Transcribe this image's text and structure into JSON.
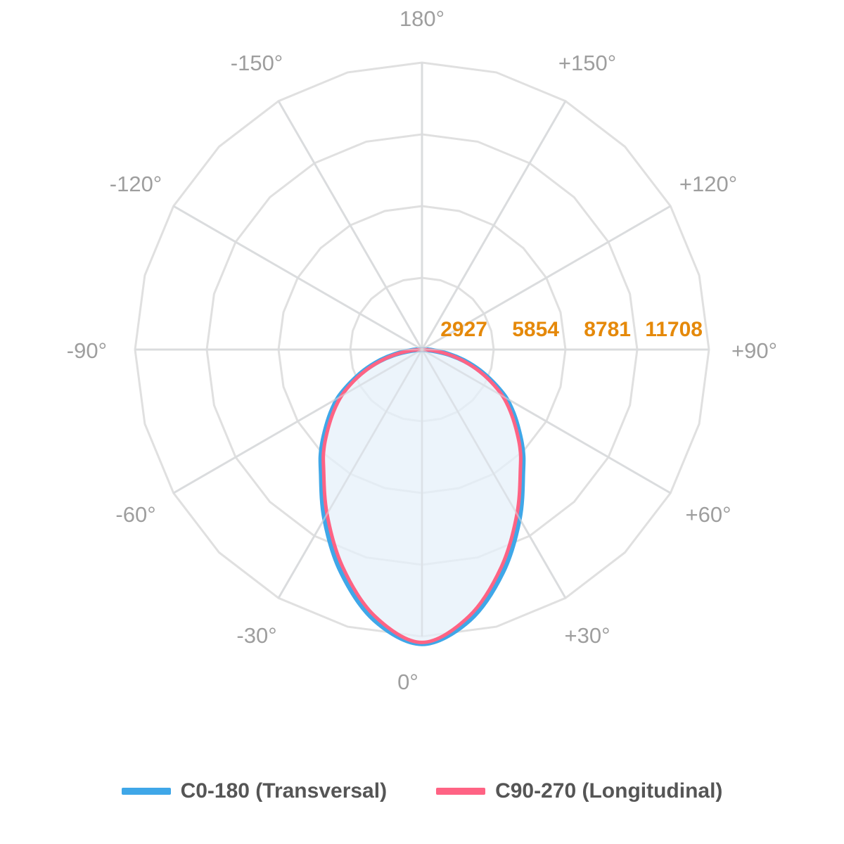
{
  "chart_data": {
    "type": "polar",
    "angle_labels": [
      {
        "deg": 0,
        "text": "0°"
      },
      {
        "deg": 30,
        "text": "+30°"
      },
      {
        "deg": 60,
        "text": "+60°"
      },
      {
        "deg": 90,
        "text": "+90°"
      },
      {
        "deg": 120,
        "text": "+120°"
      },
      {
        "deg": 150,
        "text": "+150°"
      },
      {
        "deg": 180,
        "text": "180°"
      },
      {
        "deg": -150,
        "text": "-150°"
      },
      {
        "deg": -120,
        "text": "-120°"
      },
      {
        "deg": -90,
        "text": "-90°"
      },
      {
        "deg": -60,
        "text": "-60°"
      },
      {
        "deg": -30,
        "text": "-30°"
      }
    ],
    "radial_ticks": [
      "2927",
      "5854",
      "8781",
      "11708"
    ],
    "r_max": 11708,
    "grid": true,
    "legend_position": "bottom",
    "series": [
      {
        "name": "C0-180 (Transversal)",
        "color": "#3fa7e8",
        "angles": [
          0,
          10,
          20,
          30,
          40,
          45,
          50,
          55,
          60,
          65,
          70,
          75,
          80,
          85,
          90
        ],
        "values": [
          12000,
          11200,
          9650,
          7950,
          6400,
          5800,
          5150,
          4550,
          3950,
          3200,
          2500,
          1800,
          1100,
          450,
          0
        ]
      },
      {
        "name": "C90-270 (Longitudinal)",
        "color": "#ff6384",
        "angles": [
          0,
          10,
          20,
          30,
          40,
          45,
          50,
          55,
          60,
          65,
          70,
          75,
          80,
          85,
          90
        ],
        "values": [
          11950,
          11050,
          9450,
          7750,
          6250,
          5650,
          5000,
          4400,
          3800,
          3100,
          2400,
          1700,
          1050,
          420,
          0
        ]
      }
    ],
    "accent_color": "#e5890a",
    "fill_color": "#e6f0fa"
  }
}
